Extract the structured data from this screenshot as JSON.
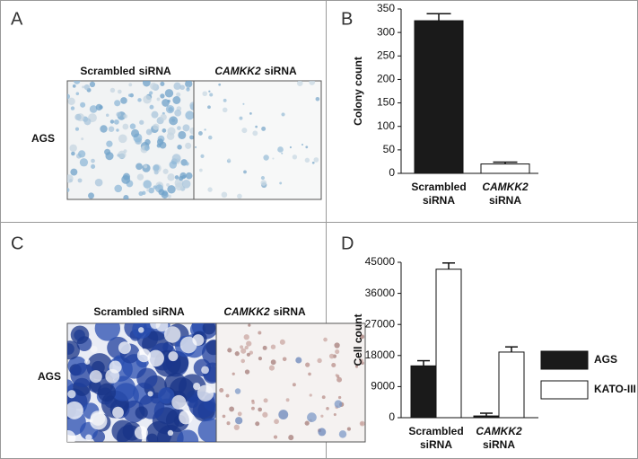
{
  "panels": [
    {
      "label": "A",
      "captions": [
        [
          "Scrambled",
          "siRNA"
        ],
        [
          "CAMKK2",
          "siRNA"
        ]
      ],
      "row_label": "AGS"
    },
    {
      "label": "B"
    },
    {
      "label": "C",
      "captions": [
        [
          "Scrambled",
          "siRNA"
        ],
        [
          "CAMKK2",
          "siRNA"
        ]
      ],
      "row_label": "AGS"
    },
    {
      "label": "D"
    }
  ],
  "chart_data": [
    {
      "type": "bar",
      "ylabel": "Colony count",
      "categories": [
        [
          "Scrambled",
          "siRNA"
        ],
        [
          "CAMKK2",
          "siRNA"
        ]
      ],
      "values": [
        325,
        20
      ],
      "errors": [
        15,
        4
      ],
      "colors": [
        "#1a1a1a",
        "#ffffff"
      ],
      "ylim": [
        0,
        350
      ],
      "yticks": [
        0,
        50,
        100,
        150,
        200,
        250,
        300,
        350
      ]
    },
    {
      "type": "grouped_bar",
      "ylabel": "Cell count",
      "categories": [
        [
          "Scrambled",
          "siRNA"
        ],
        [
          "CAMKK2",
          "siRNA"
        ]
      ],
      "series": [
        {
          "name": "AGS",
          "color": "#1a1a1a",
          "values": [
            15000,
            500
          ],
          "errors": [
            1500,
            800
          ]
        },
        {
          "name": "KATO-III",
          "color": "#ffffff",
          "values": [
            43000,
            19000
          ],
          "errors": [
            1800,
            1500
          ]
        }
      ],
      "ylim": [
        0,
        45000
      ],
      "yticks": [
        0,
        9000,
        18000,
        27000,
        36000,
        45000
      ],
      "legend": "right"
    }
  ]
}
